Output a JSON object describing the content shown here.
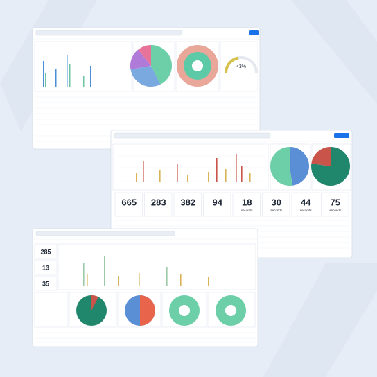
{
  "windows": [
    {
      "gauge": "43%"
    },
    {
      "stats": [
        {
          "value": 665
        },
        {
          "value": 283
        },
        {
          "value": 382
        },
        {
          "value": 94
        },
        {
          "value": 18,
          "unit": "seconds"
        },
        {
          "value": 30,
          "unit": "seconds"
        },
        {
          "value": 44,
          "unit": "seconds"
        },
        {
          "value": 75,
          "unit": "seconds"
        }
      ]
    },
    {
      "stats": [
        {
          "value": 285
        },
        {
          "value": 13
        },
        {
          "value": 35
        }
      ]
    }
  ]
}
